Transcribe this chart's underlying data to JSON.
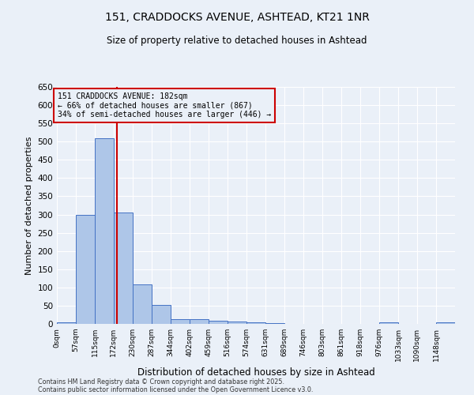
{
  "title1": "151, CRADDOCKS AVENUE, ASHTEAD, KT21 1NR",
  "title2": "Size of property relative to detached houses in Ashtead",
  "xlabel": "Distribution of detached houses by size in Ashtead",
  "ylabel": "Number of detached properties",
  "bins": [
    0,
    57,
    115,
    172,
    230,
    287,
    344,
    402,
    459,
    516,
    574,
    631,
    689,
    746,
    803,
    861,
    918,
    976,
    1033,
    1090,
    1148
  ],
  "counts": [
    5,
    300,
    510,
    305,
    108,
    52,
    13,
    14,
    8,
    6,
    4,
    2,
    1,
    1,
    1,
    1,
    1,
    4,
    1,
    1,
    4
  ],
  "bar_color": "#aec6e8",
  "bar_edge_color": "#4472c4",
  "property_size": 182,
  "vline_color": "#cc0000",
  "annotation_text": "151 CRADDOCKS AVENUE: 182sqm\n← 66% of detached houses are smaller (867)\n34% of semi-detached houses are larger (446) →",
  "annotation_box_color": "#cc0000",
  "ylim": [
    0,
    650
  ],
  "yticks": [
    0,
    50,
    100,
    150,
    200,
    250,
    300,
    350,
    400,
    450,
    500,
    550,
    600,
    650
  ],
  "bg_color": "#eaf0f8",
  "grid_color": "#ffffff",
  "footer_line1": "Contains HM Land Registry data © Crown copyright and database right 2025.",
  "footer_line2": "Contains public sector information licensed under the Open Government Licence v3.0."
}
